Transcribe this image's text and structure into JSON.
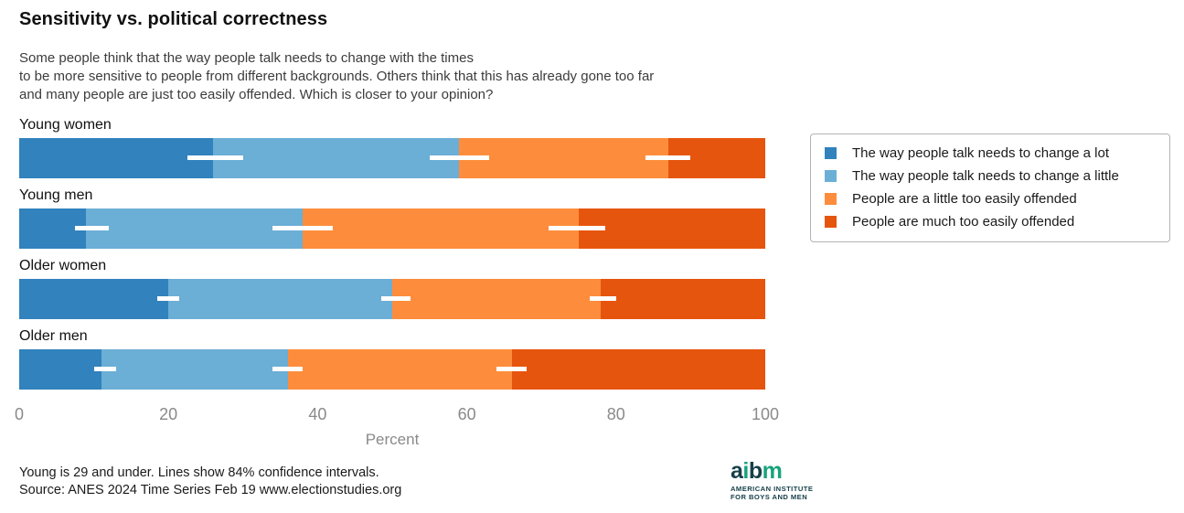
{
  "chart_data": {
    "type": "bar",
    "orientation": "horizontal_stacked",
    "title": "Sensitivity vs. political correctness",
    "subtitle_lines": [
      "Some people think that the way people talk needs to change with the times",
      "to be more sensitive to people from different backgrounds. Others think that this has already gone too far",
      "and many people are just too easily offended. Which is closer to your opinion?"
    ],
    "categories": [
      "Young women",
      "Young men",
      "Older women",
      "Older men"
    ],
    "series": [
      {
        "name": "The way people talk needs to change a lot",
        "color": "#3182bd",
        "values": [
          26,
          9,
          20,
          11
        ]
      },
      {
        "name": "The way people talk needs to change a little",
        "color": "#6baed6",
        "values": [
          33,
          29,
          30,
          25
        ]
      },
      {
        "name": "People are a little too easily offended",
        "color": "#fd8d3c",
        "values": [
          28,
          37,
          28,
          30
        ]
      },
      {
        "name": "People are much too easily offended",
        "color": "#e6550d",
        "values": [
          13,
          25,
          22,
          34
        ]
      }
    ],
    "confidence_intervals": {
      "note": "84% confidence intervals shown as white lines at cumulative segment boundaries",
      "by_category": [
        [
          [
            22.5,
            30.0
          ],
          [
            55.0,
            63.0
          ],
          [
            84.0,
            90.0
          ]
        ],
        [
          [
            7.5,
            12.0
          ],
          [
            34.0,
            42.0
          ],
          [
            71.0,
            78.5
          ]
        ],
        [
          [
            18.5,
            21.5
          ],
          [
            48.5,
            52.5
          ],
          [
            76.5,
            80.0
          ]
        ],
        [
          [
            10.0,
            13.0
          ],
          [
            34.0,
            38.0
          ],
          [
            64.0,
            68.0
          ]
        ]
      ]
    },
    "xlabel": "Percent",
    "xticks": [
      0,
      20,
      40,
      60,
      80,
      100
    ],
    "xlim": [
      0,
      100
    ],
    "grid": false,
    "legend_position": "right"
  },
  "footer": {
    "note_line1": "Young is 29 and under. Lines show 84% confidence intervals.",
    "note_line2": "Source: ANES 2024 Time Series Feb 19 www.electionstudies.org"
  },
  "logo": {
    "letters": [
      {
        "char": "a",
        "color": "#16404a"
      },
      {
        "char": "i",
        "color": "#17a37b"
      },
      {
        "char": "b",
        "color": "#16404a"
      },
      {
        "char": "m",
        "color": "#17a37b"
      }
    ],
    "tagline_line1": "AMERICAN INSTITUTE",
    "tagline_line2": "FOR BOYS AND MEN"
  }
}
